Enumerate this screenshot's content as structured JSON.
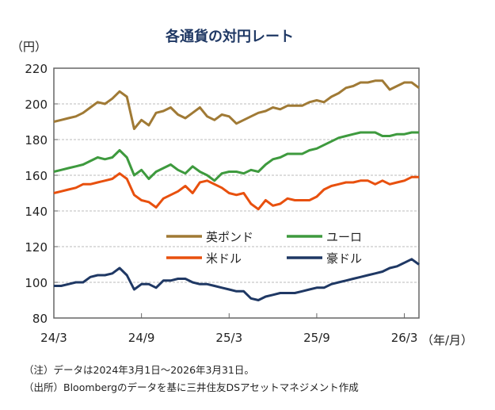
{
  "chart_data": {
    "type": "line",
    "title": "各通貨の対円レート",
    "ylabel": "（円）",
    "xlabel": "（年/月）",
    "ylim": [
      80,
      220
    ],
    "yticks": [
      80,
      100,
      120,
      140,
      160,
      180,
      200,
      220
    ],
    "xticks": [
      {
        "label": "24/3",
        "m": 0
      },
      {
        "label": "24/9",
        "m": 6
      },
      {
        "label": "25/3",
        "m": 12
      },
      {
        "label": "25/9",
        "m": 18
      },
      {
        "label": "26/3",
        "m": 24
      }
    ],
    "x_unit": "months since 2024/3 (semi-monthly points)",
    "x_step": 0.5,
    "grid": "horizontal dashed",
    "legend_placement": "center-bottom",
    "series": [
      {
        "name": "英ポンド",
        "color": "#A07A35",
        "values": [
          190,
          191,
          192,
          193,
          195,
          198,
          201,
          200,
          203,
          207,
          204,
          186,
          191,
          188,
          195,
          196,
          198,
          194,
          192,
          195,
          198,
          193,
          191,
          194,
          193,
          189,
          191,
          193,
          195,
          196,
          198,
          197,
          199,
          199,
          199,
          201,
          202,
          201,
          204,
          206,
          209,
          210,
          212,
          212,
          213,
          213,
          208,
          210,
          212,
          212,
          209
        ]
      },
      {
        "name": "ユーロ",
        "color": "#3E9A3E",
        "values": [
          162,
          163,
          164,
          165,
          166,
          168,
          170,
          169,
          170,
          174,
          170,
          160,
          163,
          158,
          162,
          164,
          166,
          163,
          161,
          165,
          162,
          160,
          157,
          161,
          162,
          162,
          161,
          163,
          162,
          166,
          169,
          170,
          172,
          172,
          172,
          174,
          175,
          177,
          179,
          181,
          182,
          183,
          184,
          184,
          184,
          182,
          182,
          183,
          183,
          184,
          184
        ]
      },
      {
        "name": "米ドル",
        "color": "#E8500E",
        "values": [
          150,
          151,
          152,
          153,
          155,
          155,
          156,
          157,
          158,
          161,
          158,
          149,
          146,
          145,
          142,
          147,
          149,
          151,
          154,
          150,
          156,
          157,
          155,
          153,
          150,
          149,
          150,
          144,
          141,
          146,
          143,
          144,
          147,
          146,
          146,
          146,
          148,
          152,
          154,
          155,
          156,
          156,
          157,
          157,
          155,
          157,
          155,
          156,
          157,
          159,
          159
        ]
      },
      {
        "name": "豪ドル",
        "color": "#1F3864",
        "values": [
          98,
          98,
          99,
          100,
          100,
          103,
          104,
          104,
          105,
          108,
          104,
          96,
          99,
          99,
          97,
          101,
          101,
          102,
          102,
          100,
          99,
          99,
          98,
          97,
          96,
          95,
          95,
          91,
          90,
          92,
          93,
          94,
          94,
          94,
          95,
          96,
          97,
          97,
          99,
          100,
          101,
          102,
          103,
          104,
          105,
          106,
          108,
          109,
          111,
          113,
          110
        ]
      }
    ]
  },
  "notes": [
    "（注）データは2024年3月1日～2026年3月31日。",
    "（出所）Bloombergのデータを基に三井住友DSアセットマネジメント作成"
  ]
}
